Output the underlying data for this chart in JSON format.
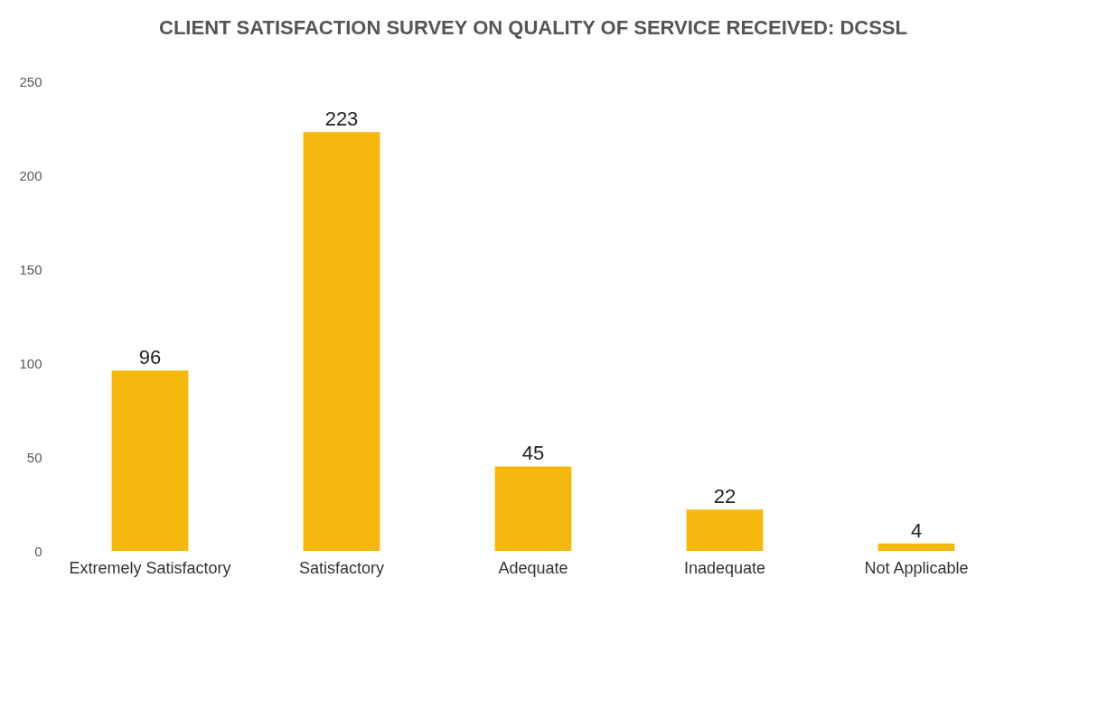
{
  "chart_data": {
    "type": "bar",
    "title": "CLIENT SATISFACTION SURVEY ON QUALITY OF SERVICE RECEIVED: DCSSL",
    "categories": [
      "Extremely Satisfactory",
      "Satisfactory",
      "Adequate",
      "Inadequate",
      "Not Applicable"
    ],
    "values": [
      96,
      223,
      45,
      22,
      4
    ],
    "color": "#f5b80f",
    "ylim": [
      0,
      250
    ],
    "yticks": [
      0,
      50,
      100,
      150,
      200,
      250
    ],
    "grid": false,
    "data_labels": true
  }
}
